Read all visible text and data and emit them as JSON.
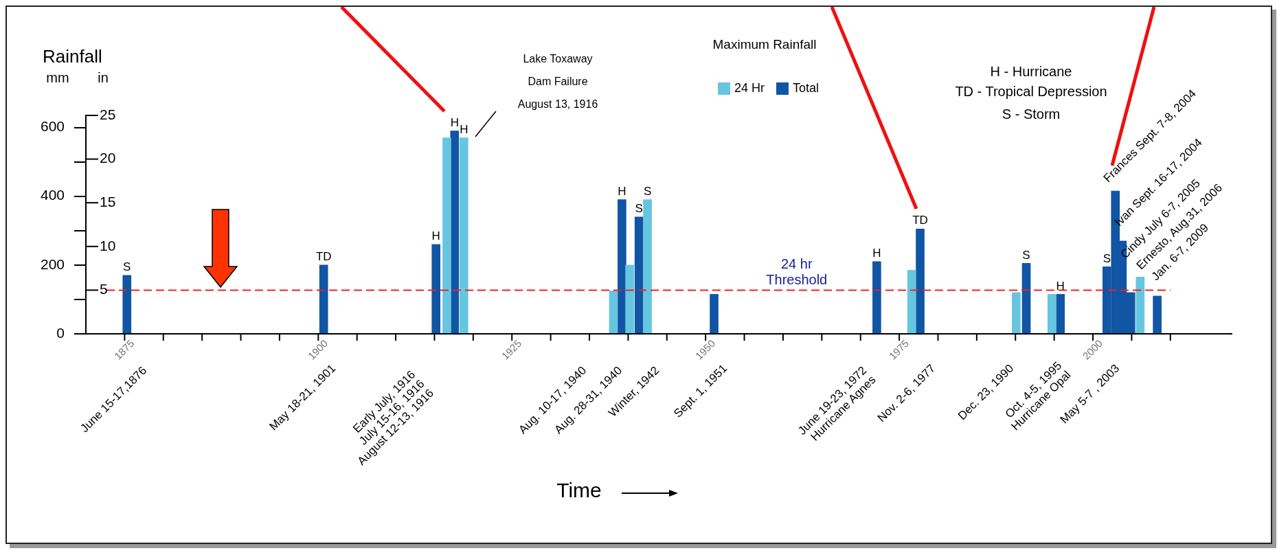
{
  "chart_data": {
    "type": "bar",
    "title": "Rainfall",
    "ylabel": "mm",
    "y2label": "in",
    "legend_title": "Maximum Rainfall",
    "legend": "top",
    "xlim": [
      1870,
      2018
    ],
    "xticks": [
      1875,
      {
        "value": 1880,
        "label": null
      },
      {
        "value": 1885,
        "label": null
      },
      {
        "value": 1890,
        "label": null
      },
      {
        "value": 1895,
        "label": null
      },
      1900,
      {
        "value": 1905,
        "label": null
      },
      {
        "value": 1910,
        "label": null
      },
      {
        "value": 1915,
        "label": null
      },
      {
        "value": 1920,
        "label": null
      },
      1925,
      {
        "value": 1930,
        "label": null
      },
      {
        "value": 1935,
        "label": null
      },
      {
        "value": 1940,
        "label": null
      },
      {
        "value": 1945,
        "label": null
      },
      1950,
      {
        "value": 1955,
        "label": null
      },
      {
        "value": 1960,
        "label": null
      },
      {
        "value": 1965,
        "label": null
      },
      {
        "value": 1970,
        "label": null
      },
      1975,
      {
        "value": 1980,
        "label": null
      },
      {
        "value": 1985,
        "label": null
      },
      {
        "value": 1990,
        "label": null
      },
      {
        "value": 1995,
        "label": null
      },
      2000,
      {
        "value": 2005,
        "label": null
      },
      {
        "value": 2010,
        "label": null
      }
    ],
    "ylim": [
      0,
      635
    ],
    "yticks": [
      0,
      {
        "value": 100,
        "label": null
      },
      200,
      {
        "value": 300,
        "label": null
      },
      400,
      {
        "value": 500,
        "label": null
      },
      600
    ],
    "y2lim": [
      0,
      25
    ],
    "y2ticks": [
      5,
      10,
      15,
      20,
      25
    ],
    "series": [
      {
        "name": "24 Hr",
        "color": "#66c6e0",
        "x": [
          1916.6,
          1918.8,
          1938.1,
          1940.2,
          1942.5,
          1976.6,
          1990.1,
          1994.7,
          2006.1
        ],
        "values": [
          570,
          570,
          125,
          200,
          390,
          185,
          120,
          115,
          165
        ],
        "value_labels": [
          null,
          "H",
          null,
          null,
          "S",
          null,
          null,
          null,
          null
        ]
      },
      {
        "name": "Total",
        "color": "#1155a5",
        "x": [
          1875.3,
          1900.7,
          1915.2,
          1917.6,
          1939.2,
          1941.4,
          1951.1,
          1972.1,
          1977.7,
          1991.4,
          1995.8,
          2001.8,
          2002.9,
          2003.8,
          2004.9,
          2008.3
        ],
        "values": [
          170,
          200,
          260,
          590,
          390,
          340,
          115,
          210,
          305,
          205,
          115,
          195,
          415,
          270,
          120,
          110
        ],
        "value_labels": [
          "S",
          "TD",
          "H",
          "H",
          "H",
          "S",
          null,
          "H",
          "TD",
          "S",
          "H",
          "S",
          null,
          null,
          null,
          null
        ]
      }
    ],
    "ref_lines": [
      {
        "axis": "y",
        "value": 127,
        "label": "24 hr\nThreshold",
        "color": "#ee2222",
        "line_style": "dashed"
      }
    ],
    "annotations": [
      "H - Hurricane",
      "TD - Tropical Depression",
      "S - Storm",
      "Lake Toxaway\nDam Failure\nAugust 13, 1916",
      "June 15-17,1876",
      "May 18-21, 1901",
      "Early July, 1916\nJuly 15-16, 1916\nAugust 12-13, 1916",
      "Aug. 10-17, 1940",
      "Aug. 28-31, 1940",
      "Winter, 1942",
      "Sept. 1, 1951",
      "June 19-23, 1972\nHurricane Agnes",
      "Nov. 2-6, 1977",
      "Dec. 23, 1990",
      "Oct. 4-5, 1995\nHurricane Opal",
      "May 5-7 , 2003",
      "Frances Sept. 7-8, 2004",
      "Ivan Sept. 16-17, 2004",
      "Cindy July 6-7, 2005",
      "Ernesto, Aug.31, 2006",
      "Jan. 6-7, 2009",
      "Time"
    ]
  }
}
